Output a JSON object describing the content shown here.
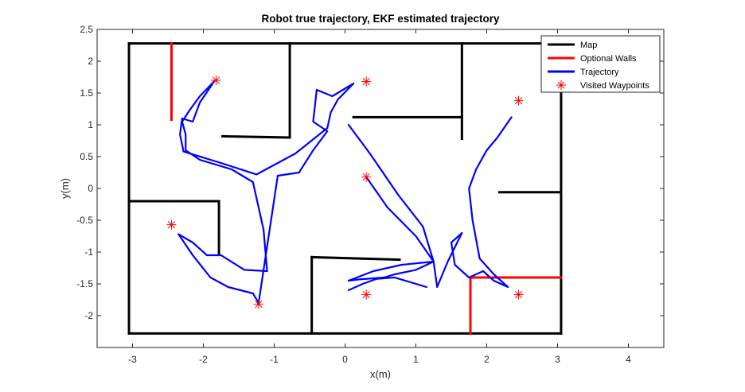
{
  "chart_data": {
    "type": "line",
    "title": "Robot true trajectory, EKF estimated trajectory",
    "xlabel": "x(m)",
    "ylabel": "y(m)",
    "xlim": [
      -3.5,
      4.5
    ],
    "ylim": [
      -2.5,
      2.5
    ],
    "xticks": [
      -3,
      -2,
      -1,
      0,
      1,
      2,
      3,
      4
    ],
    "yticks": [
      -2,
      -1.5,
      -1,
      -0.5,
      0,
      0.5,
      1,
      1.5,
      2,
      2.5
    ],
    "grid": false,
    "legend_position": "top-right",
    "colors": {
      "map": "#000000",
      "optional": "#ff0000",
      "trajectory": "#0000ff",
      "waypoint": "#ff0000"
    },
    "series": [
      {
        "name": "Map",
        "kind": "segments",
        "color": "#000000",
        "segments": [
          [
            [
              -3.05,
              2.28
            ],
            [
              3.05,
              2.28
            ]
          ],
          [
            [
              3.05,
              2.28
            ],
            [
              3.05,
              -2.28
            ]
          ],
          [
            [
              3.05,
              -2.28
            ],
            [
              -3.05,
              -2.28
            ]
          ],
          [
            [
              -3.05,
              -2.28
            ],
            [
              -3.05,
              2.28
            ]
          ],
          [
            [
              -0.78,
              2.28
            ],
            [
              -0.78,
              0.8
            ]
          ],
          [
            [
              -0.78,
              0.8
            ],
            [
              -1.73,
              0.82
            ]
          ],
          [
            [
              -3.05,
              -0.2
            ],
            [
              -1.78,
              -0.2
            ]
          ],
          [
            [
              -1.78,
              -0.2
            ],
            [
              -1.78,
              -1.03
            ]
          ],
          [
            [
              -0.47,
              -2.28
            ],
            [
              -0.47,
              -1.08
            ]
          ],
          [
            [
              -0.47,
              -1.08
            ],
            [
              0.77,
              -1.12
            ]
          ],
          [
            [
              1.65,
              2.28
            ],
            [
              1.65,
              0.78
            ]
          ],
          [
            [
              1.65,
              1.12
            ],
            [
              0.12,
              1.12
            ]
          ],
          [
            [
              3.05,
              -0.06
            ],
            [
              2.18,
              -0.06
            ]
          ]
        ]
      },
      {
        "name": "Optional Walls",
        "kind": "segments",
        "color": "#ff0000",
        "segments": [
          [
            [
              -2.45,
              2.28
            ],
            [
              -2.45,
              1.08
            ]
          ],
          [
            [
              1.77,
              -2.28
            ],
            [
              1.77,
              -1.4
            ]
          ],
          [
            [
              1.77,
              -1.4
            ],
            [
              3.05,
              -1.4
            ]
          ]
        ]
      },
      {
        "name": "Trajectory",
        "kind": "lines",
        "color": "#0000ff",
        "paths": [
          [
            [
              -1.85,
              1.68
            ],
            [
              -2.05,
              1.45
            ],
            [
              -2.2,
              1.22
            ],
            [
              -2.3,
              1.05
            ],
            [
              -2.25,
              0.85
            ],
            [
              -2.25,
              0.6
            ],
            [
              -2.05,
              0.45
            ],
            [
              -1.6,
              0.3
            ],
            [
              -1.3,
              0.1
            ],
            [
              -1.25,
              -0.15
            ],
            [
              -1.15,
              -0.65
            ],
            [
              -1.1,
              -1.3
            ],
            [
              -1.42,
              -1.28
            ],
            [
              -1.75,
              -1.05
            ],
            [
              -1.95,
              -1.05
            ],
            [
              -2.15,
              -0.85
            ],
            [
              -2.35,
              -0.72
            ]
          ],
          [
            [
              -2.35,
              -0.72
            ],
            [
              -2.15,
              -1.05
            ],
            [
              -1.9,
              -1.4
            ],
            [
              -1.65,
              -1.55
            ],
            [
              -1.3,
              -1.65
            ],
            [
              -1.22,
              -1.8
            ],
            [
              -0.95,
              0.2
            ],
            [
              -0.65,
              0.25
            ],
            [
              -0.45,
              0.6
            ],
            [
              -0.25,
              0.9
            ],
            [
              -0.45,
              1.05
            ],
            [
              -0.4,
              1.55
            ],
            [
              -0.18,
              1.45
            ],
            [
              0.12,
              1.65
            ],
            [
              -0.1,
              1.4
            ],
            [
              -0.2,
              1.2
            ],
            [
              -0.25,
              0.95
            ],
            [
              -0.7,
              0.55
            ],
            [
              -1.25,
              0.22
            ],
            [
              -1.75,
              0.4
            ],
            [
              -2.28,
              0.58
            ],
            [
              -2.33,
              0.85
            ],
            [
              -2.3,
              1.1
            ],
            [
              -2.15,
              1.05
            ],
            [
              -2.05,
              1.35
            ],
            [
              -1.85,
              1.68
            ]
          ],
          [
            [
              0.3,
              0.18
            ],
            [
              0.6,
              -0.3
            ],
            [
              1.0,
              -0.75
            ],
            [
              1.25,
              -1.15
            ],
            [
              1.0,
              -1.28
            ],
            [
              0.7,
              -1.35
            ],
            [
              0.55,
              -1.4
            ],
            [
              0.2,
              -1.43
            ],
            [
              0.05,
              -1.45
            ],
            [
              0.4,
              -1.3
            ],
            [
              0.8,
              -1.2
            ],
            [
              1.25,
              -1.15
            ],
            [
              1.3,
              -1.55
            ],
            [
              1.45,
              -1.15
            ],
            [
              1.65,
              -0.7
            ],
            [
              1.5,
              -0.85
            ],
            [
              1.55,
              -1.2
            ],
            [
              1.75,
              -1.4
            ],
            [
              1.95,
              -1.3
            ],
            [
              2.1,
              -1.45
            ],
            [
              2.3,
              -1.55
            ],
            [
              2.1,
              -1.35
            ],
            [
              1.9,
              -1.1
            ],
            [
              1.8,
              -0.5
            ],
            [
              1.75,
              0.0
            ],
            [
              1.85,
              0.3
            ],
            [
              2.0,
              0.6
            ],
            [
              2.15,
              0.8
            ],
            [
              2.35,
              1.12
            ]
          ],
          [
            [
              0.05,
              -1.6
            ],
            [
              0.25,
              -1.5
            ],
            [
              0.45,
              -1.42
            ],
            [
              0.7,
              -1.4
            ],
            [
              1.15,
              -1.55
            ]
          ],
          [
            [
              0.05,
              1.0
            ],
            [
              0.35,
              0.55
            ],
            [
              0.75,
              -0.1
            ],
            [
              1.1,
              -0.6
            ],
            [
              1.25,
              -1.15
            ]
          ]
        ]
      },
      {
        "name": "Visited Waypoints",
        "kind": "markers",
        "color": "#ff0000",
        "points": [
          [
            -1.82,
            1.7
          ],
          [
            0.3,
            1.68
          ],
          [
            2.45,
            1.38
          ],
          [
            0.3,
            0.18
          ],
          [
            -2.45,
            -0.57
          ],
          [
            -1.22,
            -1.82
          ],
          [
            0.3,
            -1.67
          ],
          [
            2.45,
            -1.67
          ]
        ]
      }
    ]
  }
}
